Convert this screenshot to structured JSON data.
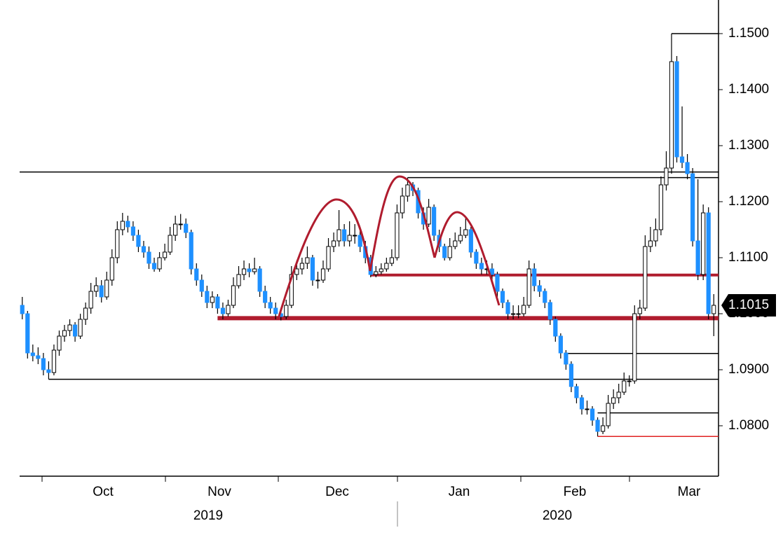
{
  "chart_data": {
    "type": "candlestick",
    "x_labels": [
      "Oct",
      "Nov",
      "Dec",
      "Jan",
      "Feb",
      "Mar"
    ],
    "years": [
      "2019",
      "2020"
    ],
    "ylim": [
      1.071,
      1.156
    ],
    "yticks": [
      {
        "value": 1.08,
        "label": "1.0800"
      },
      {
        "value": 1.09,
        "label": "1.0900"
      },
      {
        "value": 1.1,
        "label": "1.1000"
      },
      {
        "value": 1.11,
        "label": "1.1100"
      },
      {
        "value": 1.12,
        "label": "1.1200"
      },
      {
        "value": 1.13,
        "label": "1.1300"
      },
      {
        "value": 1.14,
        "label": "1.1400"
      },
      {
        "value": 1.15,
        "label": "1.1500"
      }
    ],
    "last_price": {
      "value": 1.1015,
      "label": "1.1015"
    },
    "up_color": "#ffffff",
    "down_color": "#1e90ff",
    "levels": [
      {
        "value": 1.1253,
        "color": "#000000",
        "width": 1.5
      },
      {
        "value": 1.1243,
        "color": "#000000",
        "width": 1.5
      },
      {
        "value": 1.15,
        "color": "#000000",
        "width": 1.5
      },
      {
        "value": 1.1069,
        "color": "#b01c2e",
        "width": 4
      },
      {
        "value": 1.0992,
        "color": "#b01c2e",
        "width": 6
      },
      {
        "value": 1.0929,
        "color": "#000000",
        "width": 1.5
      },
      {
        "value": 1.0883,
        "color": "#000000",
        "width": 1.5
      },
      {
        "value": 1.0823,
        "color": "#000000",
        "width": 1.5
      },
      {
        "value": 1.0781,
        "color": "#e02020",
        "width": 1.5
      }
    ],
    "ohlc": [
      [
        1.1015,
        1.103,
        1.099,
        1.1
      ],
      [
        1.1,
        1.1005,
        1.092,
        1.093
      ],
      [
        1.093,
        1.0945,
        1.0915,
        1.0925
      ],
      [
        1.0925,
        1.094,
        1.091,
        1.092
      ],
      [
        1.092,
        1.093,
        1.089,
        1.09
      ],
      [
        1.09,
        1.0915,
        1.0883,
        1.0895
      ],
      [
        1.0895,
        1.0945,
        1.089,
        1.0935
      ],
      [
        1.0935,
        1.097,
        1.0925,
        1.096
      ],
      [
        1.096,
        1.098,
        1.095,
        1.097
      ],
      [
        1.097,
        1.099,
        1.096,
        1.098
      ],
      [
        1.098,
        1.0985,
        1.095,
        1.096
      ],
      [
        1.096,
        1.1,
        1.0955,
        1.099
      ],
      [
        1.099,
        1.102,
        1.098,
        1.101
      ],
      [
        1.101,
        1.1055,
        1.1,
        1.104
      ],
      [
        1.104,
        1.1065,
        1.103,
        1.105
      ],
      [
        1.105,
        1.106,
        1.102,
        1.103
      ],
      [
        1.103,
        1.1075,
        1.1025,
        1.106
      ],
      [
        1.106,
        1.1115,
        1.105,
        1.11
      ],
      [
        1.11,
        1.1165,
        1.109,
        1.115
      ],
      [
        1.115,
        1.118,
        1.114,
        1.1165
      ],
      [
        1.1165,
        1.1175,
        1.1145,
        1.1155
      ],
      [
        1.1155,
        1.1165,
        1.113,
        1.114
      ],
      [
        1.114,
        1.115,
        1.111,
        1.112
      ],
      [
        1.112,
        1.113,
        1.11,
        1.111
      ],
      [
        1.111,
        1.112,
        1.108,
        1.109
      ],
      [
        1.109,
        1.11,
        1.1075,
        1.108
      ],
      [
        1.108,
        1.111,
        1.1075,
        1.11
      ],
      [
        1.11,
        1.1125,
        1.1095,
        1.111
      ],
      [
        1.111,
        1.1155,
        1.1105,
        1.114
      ],
      [
        1.114,
        1.1175,
        1.113,
        1.116
      ],
      [
        1.116,
        1.1178,
        1.115,
        1.116
      ],
      [
        1.116,
        1.117,
        1.1135,
        1.1145
      ],
      [
        1.1145,
        1.115,
        1.107,
        1.108
      ],
      [
        1.108,
        1.109,
        1.105,
        1.106
      ],
      [
        1.106,
        1.107,
        1.103,
        1.104
      ],
      [
        1.104,
        1.105,
        1.101,
        1.102
      ],
      [
        1.102,
        1.104,
        1.101,
        1.103
      ],
      [
        1.103,
        1.1035,
        1.1,
        1.101
      ],
      [
        1.101,
        1.102,
        1.099,
        1.1
      ],
      [
        1.1,
        1.1025,
        1.0995,
        1.1015
      ],
      [
        1.1015,
        1.1065,
        1.101,
        1.105
      ],
      [
        1.105,
        1.1085,
        1.1045,
        1.107
      ],
      [
        1.107,
        1.1095,
        1.106,
        1.108
      ],
      [
        1.108,
        1.109,
        1.1065,
        1.1075
      ],
      [
        1.1075,
        1.11,
        1.107,
        1.108
      ],
      [
        1.108,
        1.1085,
        1.103,
        1.104
      ],
      [
        1.104,
        1.105,
        1.101,
        1.102
      ],
      [
        1.102,
        1.103,
        1.1,
        1.101
      ],
      [
        1.101,
        1.102,
        1.099,
        1.1
      ],
      [
        1.1,
        1.101,
        1.0988,
        1.0995
      ],
      [
        1.0995,
        1.1025,
        1.099,
        1.1015
      ],
      [
        1.1015,
        1.1085,
        1.101,
        1.107
      ],
      [
        1.107,
        1.1095,
        1.106,
        1.108
      ],
      [
        1.108,
        1.11,
        1.107,
        1.109
      ],
      [
        1.109,
        1.112,
        1.108,
        1.11
      ],
      [
        1.11,
        1.1105,
        1.105,
        1.106
      ],
      [
        1.106,
        1.1075,
        1.1045,
        1.106
      ],
      [
        1.106,
        1.1095,
        1.1055,
        1.108
      ],
      [
        1.108,
        1.1135,
        1.1075,
        1.112
      ],
      [
        1.112,
        1.1145,
        1.111,
        1.113
      ],
      [
        1.113,
        1.1185,
        1.112,
        1.115
      ],
      [
        1.115,
        1.116,
        1.112,
        1.113
      ],
      [
        1.113,
        1.1165,
        1.112,
        1.114
      ],
      [
        1.114,
        1.116,
        1.1125,
        1.114
      ],
      [
        1.114,
        1.115,
        1.111,
        1.112
      ],
      [
        1.112,
        1.113,
        1.109,
        1.11
      ],
      [
        1.11,
        1.1105,
        1.1065,
        1.107
      ],
      [
        1.107,
        1.1085,
        1.1065,
        1.1075
      ],
      [
        1.1075,
        1.109,
        1.107,
        1.108
      ],
      [
        1.108,
        1.11,
        1.1075,
        1.109
      ],
      [
        1.109,
        1.1115,
        1.1085,
        1.11
      ],
      [
        1.11,
        1.1195,
        1.1095,
        1.118
      ],
      [
        1.118,
        1.1225,
        1.117,
        1.121
      ],
      [
        1.121,
        1.1243,
        1.12,
        1.123
      ],
      [
        1.123,
        1.1235,
        1.121,
        1.122
      ],
      [
        1.122,
        1.1225,
        1.117,
        1.118
      ],
      [
        1.118,
        1.119,
        1.115,
        1.116
      ],
      [
        1.116,
        1.1205,
        1.1155,
        1.119
      ],
      [
        1.119,
        1.1195,
        1.113,
        1.114
      ],
      [
        1.114,
        1.115,
        1.111,
        1.112
      ],
      [
        1.112,
        1.1125,
        1.1095,
        1.11
      ],
      [
        1.11,
        1.1135,
        1.1095,
        1.112
      ],
      [
        1.112,
        1.1145,
        1.1115,
        1.113
      ],
      [
        1.113,
        1.1155,
        1.1125,
        1.114
      ],
      [
        1.114,
        1.117,
        1.1135,
        1.115
      ],
      [
        1.115,
        1.1155,
        1.11,
        1.111
      ],
      [
        1.111,
        1.1115,
        1.108,
        1.109
      ],
      [
        1.109,
        1.11,
        1.107,
        1.108
      ],
      [
        1.108,
        1.1095,
        1.107,
        1.108
      ],
      [
        1.108,
        1.109,
        1.106,
        1.107
      ],
      [
        1.107,
        1.1075,
        1.103,
        1.104
      ],
      [
        1.104,
        1.1045,
        1.101,
        1.102
      ],
      [
        1.102,
        1.1025,
        1.099,
        1.1
      ],
      [
        1.1,
        1.1015,
        1.099,
        1.1
      ],
      [
        1.1,
        1.1015,
        1.0992,
        1.1
      ],
      [
        1.1,
        1.103,
        1.0995,
        1.1015
      ],
      [
        1.1015,
        1.1095,
        1.101,
        1.108
      ],
      [
        1.108,
        1.109,
        1.104,
        1.105
      ],
      [
        1.105,
        1.106,
        1.103,
        1.104
      ],
      [
        1.104,
        1.1045,
        1.101,
        1.102
      ],
      [
        1.102,
        1.1025,
        1.098,
        1.099
      ],
      [
        1.099,
        1.0995,
        1.095,
        1.096
      ],
      [
        1.096,
        1.0965,
        1.092,
        1.093
      ],
      [
        1.093,
        1.0935,
        1.09,
        1.091
      ],
      [
        1.091,
        1.0915,
        1.086,
        1.087
      ],
      [
        1.087,
        1.0875,
        1.084,
        1.085
      ],
      [
        1.085,
        1.0855,
        1.082,
        1.083
      ],
      [
        1.083,
        1.0845,
        1.082,
        1.083
      ],
      [
        1.083,
        1.0835,
        1.08,
        1.081
      ],
      [
        1.081,
        1.0815,
        1.0781,
        1.079
      ],
      [
        1.079,
        1.0815,
        1.0785,
        1.08
      ],
      [
        1.08,
        1.0855,
        1.0795,
        1.084
      ],
      [
        1.084,
        1.0865,
        1.083,
        1.085
      ],
      [
        1.085,
        1.0875,
        1.084,
        1.086
      ],
      [
        1.086,
        1.0895,
        1.0855,
        1.088
      ],
      [
        1.088,
        1.089,
        1.087,
        1.088
      ],
      [
        1.088,
        1.1015,
        1.0875,
        1.1
      ],
      [
        1.1,
        1.1025,
        1.099,
        1.101
      ],
      [
        1.101,
        1.114,
        1.1005,
        1.112
      ],
      [
        1.112,
        1.1155,
        1.111,
        1.113
      ],
      [
        1.113,
        1.117,
        1.112,
        1.115
      ],
      [
        1.115,
        1.1245,
        1.114,
        1.123
      ],
      [
        1.123,
        1.129,
        1.122,
        1.126
      ],
      [
        1.126,
        1.15,
        1.125,
        1.145
      ],
      [
        1.145,
        1.146,
        1.127,
        1.128
      ],
      [
        1.128,
        1.137,
        1.126,
        1.127
      ],
      [
        1.127,
        1.1285,
        1.124,
        1.125
      ],
      [
        1.125,
        1.126,
        1.112,
        1.113
      ],
      [
        1.113,
        1.124,
        1.106,
        1.107
      ],
      [
        1.107,
        1.1195,
        1.106,
        1.118
      ],
      [
        1.118,
        1.119,
        1.099,
        1.1
      ],
      [
        1.1,
        1.1035,
        1.096,
        1.1015
      ]
    ]
  }
}
